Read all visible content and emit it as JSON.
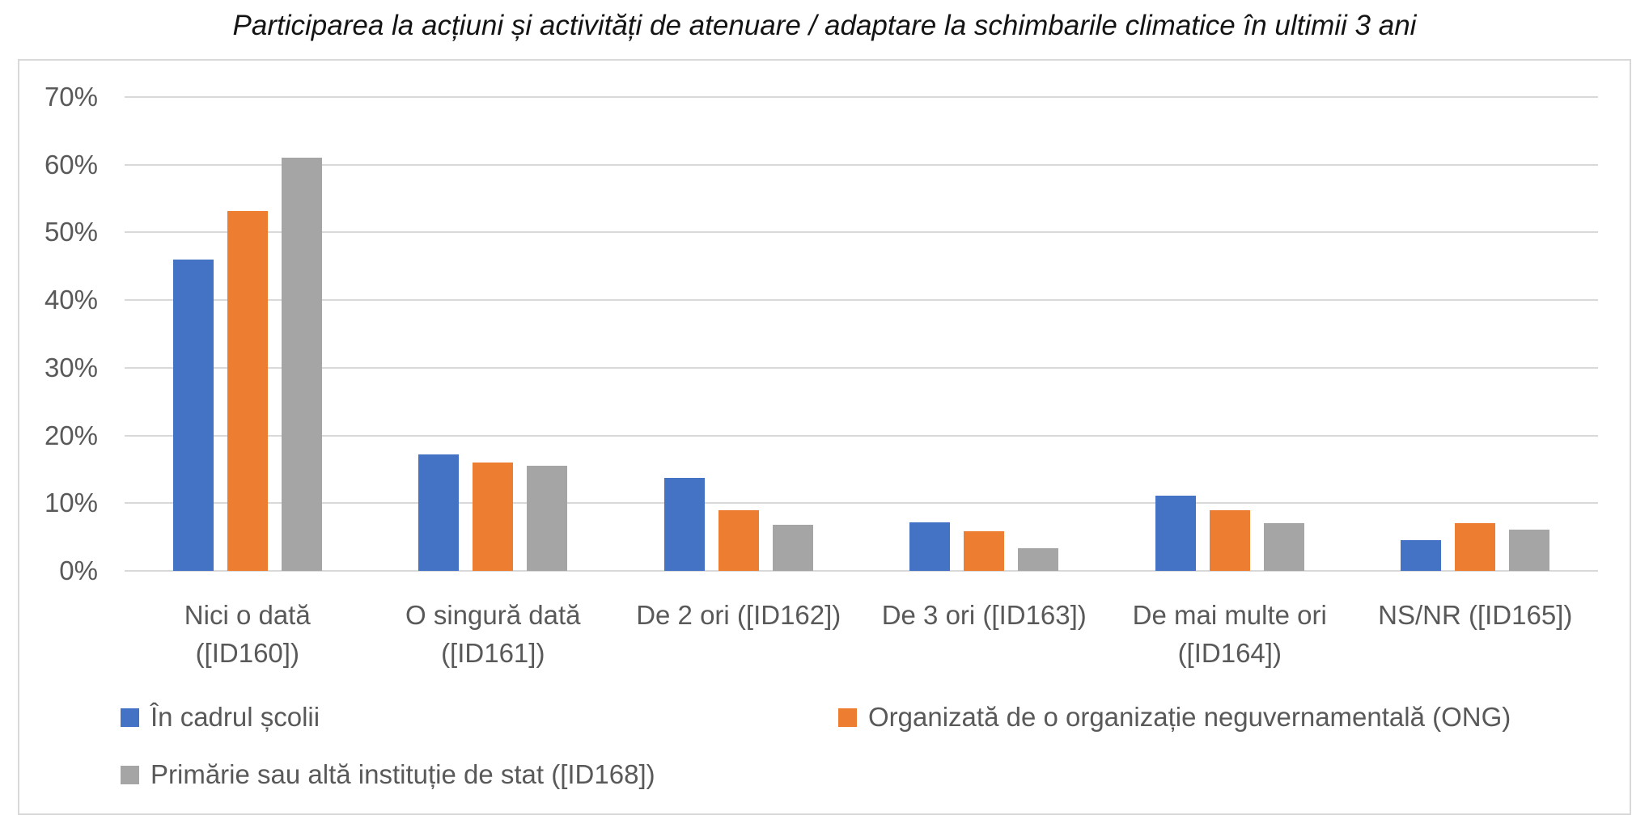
{
  "title": "Participarea la acțiuni și activități de atenuare / adaptare la schimbarile climatice în ultimii 3 ani",
  "colors": {
    "series_blue": "#4472C4",
    "series_orange": "#ED7D31",
    "series_gray": "#A5A5A5",
    "gridline": "#D9D9D9",
    "frame_border": "#D9D9D9",
    "axis_text": "#595959",
    "title_text": "#141414",
    "background": "#FFFFFF"
  },
  "chart_data": {
    "type": "bar",
    "title": "Participarea la acțiuni și activități de atenuare / adaptare la schimbarile climatice în ultimii 3 ani",
    "categories": [
      "Nici o dată ([ID160])",
      "O singură dată ([ID161])",
      "De 2 ori ([ID162])",
      "De 3 ori ([ID163])",
      "De mai multe ori ([ID164])",
      "NS/NR ([ID165])"
    ],
    "category_lines": [
      [
        "Nici o dată",
        "([ID160])"
      ],
      [
        "O singură dată",
        "([ID161])"
      ],
      [
        "De 2 ori ([ID162])"
      ],
      [
        "De 3 ori ([ID163])"
      ],
      [
        "De mai multe ori",
        "([ID164])"
      ],
      [
        "NS/NR ([ID165])"
      ]
    ],
    "series": [
      {
        "name": "În cadrul școlii",
        "color": "#4472C4",
        "values": [
          46,
          17.2,
          13.7,
          7.2,
          11.1,
          4.5
        ]
      },
      {
        "name": "Organizată de o organizație neguvernamentală (ONG)",
        "color": "#ED7D31",
        "values": [
          53.2,
          16,
          9,
          5.8,
          8.9,
          7
        ]
      },
      {
        "name": "Primărie sau altă instituție de stat ([ID168])",
        "color": "#A5A5A5",
        "values": [
          61,
          15.5,
          6.8,
          3.3,
          7,
          6.1
        ]
      }
    ],
    "xlabel": "",
    "ylabel": "",
    "ylim": [
      0,
      70
    ],
    "ytick_step": 10,
    "ytick_labels": [
      "0%",
      "10%",
      "20%",
      "30%",
      "40%",
      "50%",
      "60%",
      "70%"
    ],
    "grid": true,
    "legend_position": "bottom"
  }
}
